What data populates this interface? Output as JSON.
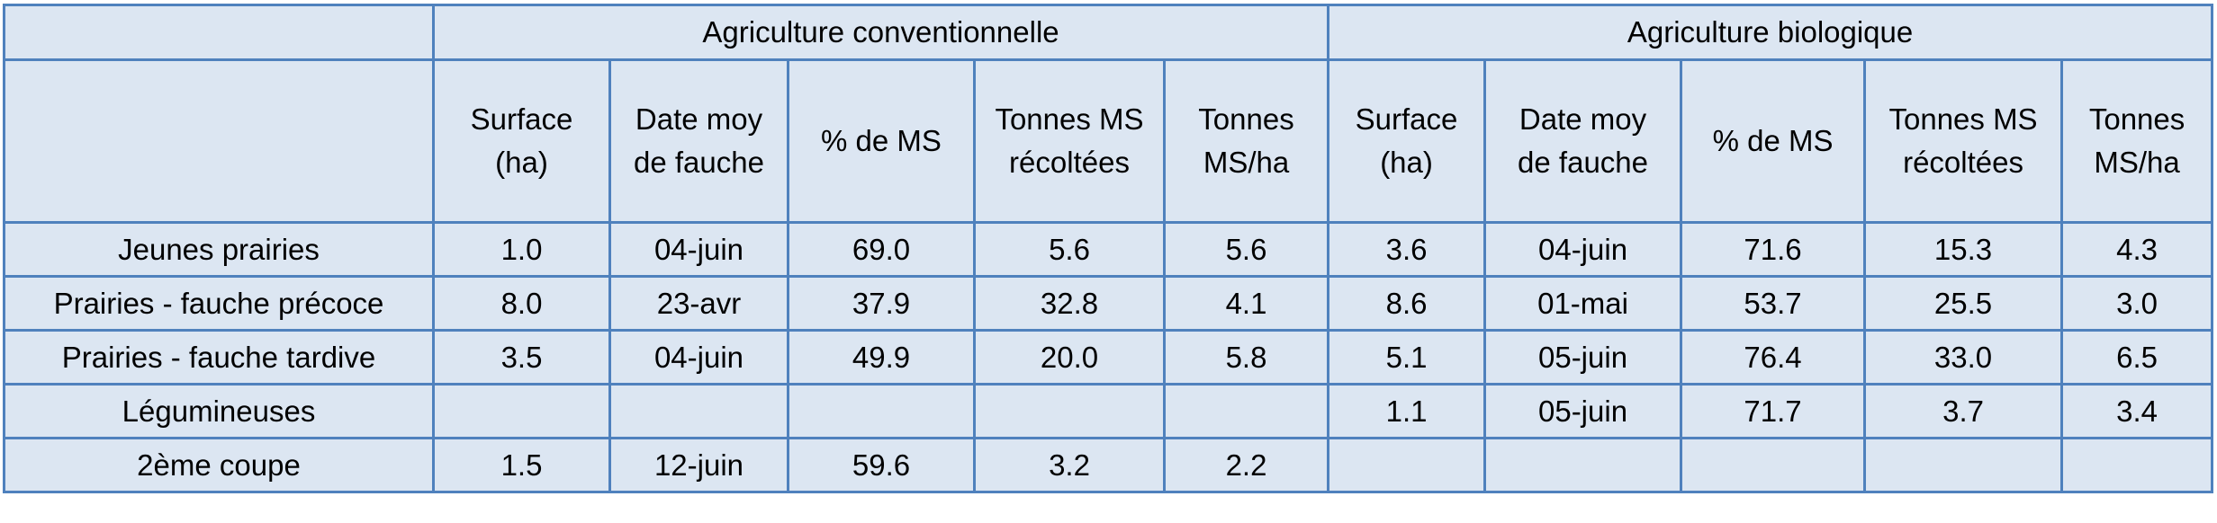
{
  "groups": [
    {
      "label": "Agriculture conventionnelle"
    },
    {
      "label": "Agriculture biologique"
    }
  ],
  "columns": [
    {
      "l1": "Surface",
      "l2": "(ha)"
    },
    {
      "l1": "Date moy",
      "l2": "de fauche"
    },
    {
      "l1": "% de MS",
      "l2": ""
    },
    {
      "l1": "Tonnes MS",
      "l2": "récoltées"
    },
    {
      "l1": "Tonnes",
      "l2": "MS/ha"
    }
  ],
  "rows": [
    {
      "label": "Jeunes prairies",
      "conv": [
        "1.0",
        "04-juin",
        "69.0",
        "5.6",
        "5.6"
      ],
      "bio": [
        "3.6",
        "04-juin",
        "71.6",
        "15.3",
        "4.3"
      ]
    },
    {
      "label": "Prairies - fauche précoce",
      "conv": [
        "8.0",
        "23-avr",
        "37.9",
        "32.8",
        "4.1"
      ],
      "bio": [
        "8.6",
        "01-mai",
        "53.7",
        "25.5",
        "3.0"
      ]
    },
    {
      "label": "Prairies - fauche tardive",
      "conv": [
        "3.5",
        "04-juin",
        "49.9",
        "20.0",
        "5.8"
      ],
      "bio": [
        "5.1",
        "05-juin",
        "76.4",
        "33.0",
        "6.5"
      ]
    },
    {
      "label": "Légumineuses",
      "conv": [
        "",
        "",
        "",
        "",
        ""
      ],
      "bio": [
        "1.1",
        "05-juin",
        "71.7",
        "3.7",
        "3.4"
      ]
    },
    {
      "label": "2ème coupe",
      "conv": [
        "1.5",
        "12-juin",
        "59.6",
        "3.2",
        "2.2"
      ],
      "bio": [
        "",
        "",
        "",
        "",
        ""
      ]
    }
  ]
}
